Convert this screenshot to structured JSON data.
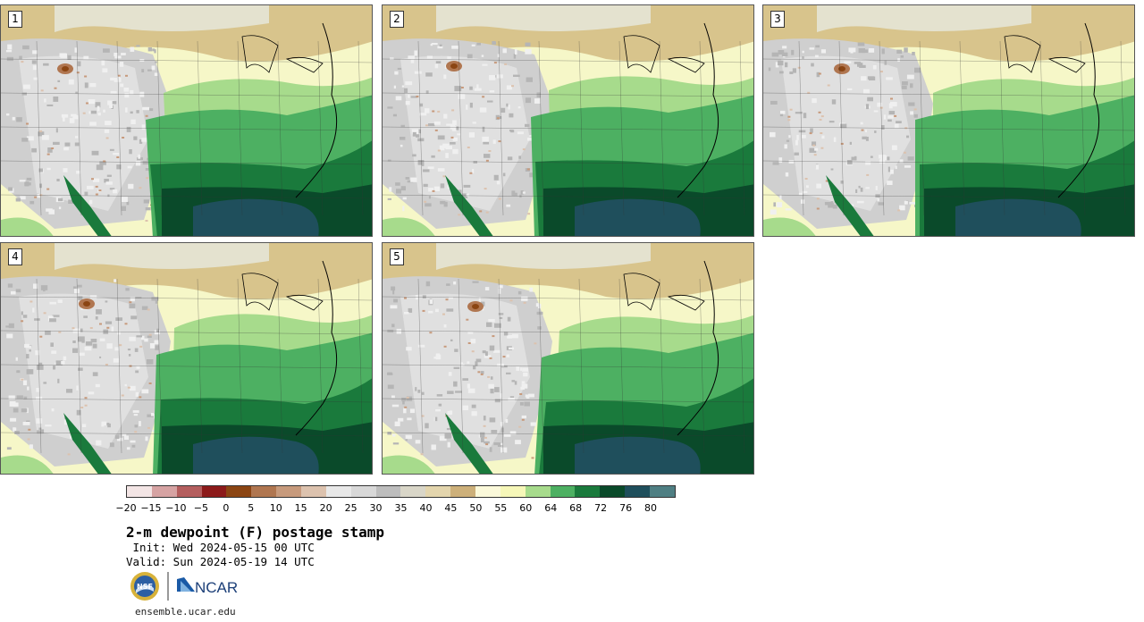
{
  "panels": [
    {
      "label": "1"
    },
    {
      "label": "2"
    },
    {
      "label": "3"
    },
    {
      "label": "4"
    },
    {
      "label": "5"
    }
  ],
  "colorbar": {
    "colors": [
      "#f3e5e5",
      "#d6a3a3",
      "#b45e5e",
      "#8c1a1a",
      "#8b4513",
      "#b07650",
      "#c79a7c",
      "#dcc2ae",
      "#e8e8e8",
      "#d8d8d8",
      "#bdbdbd",
      "#d9d6c8",
      "#e3d5ad",
      "#cdb07a",
      "#fbf9da",
      "#f6f7b8",
      "#a7db8c",
      "#4db062",
      "#1a7a3c",
      "#0a4a2a",
      "#1f4f5c",
      "#4f7f83"
    ],
    "tick_labels": [
      "−20",
      "−15",
      "−10",
      "−5",
      "0",
      "5",
      "10",
      "15",
      "20",
      "25",
      "30",
      "35",
      "40",
      "45",
      "50",
      "55",
      "60",
      "64",
      "68",
      "72",
      "76",
      "80"
    ]
  },
  "title": "2-m dewpoint (F) postage stamp",
  "init_line": " Init: Wed 2024-05-15 00 UTC",
  "valid_line": "Valid: Sun 2024-05-19 14 UTC",
  "logos": {
    "nsf": "NSF",
    "ncar": "NCAR"
  },
  "footer": "ensemble.ucar.edu"
}
